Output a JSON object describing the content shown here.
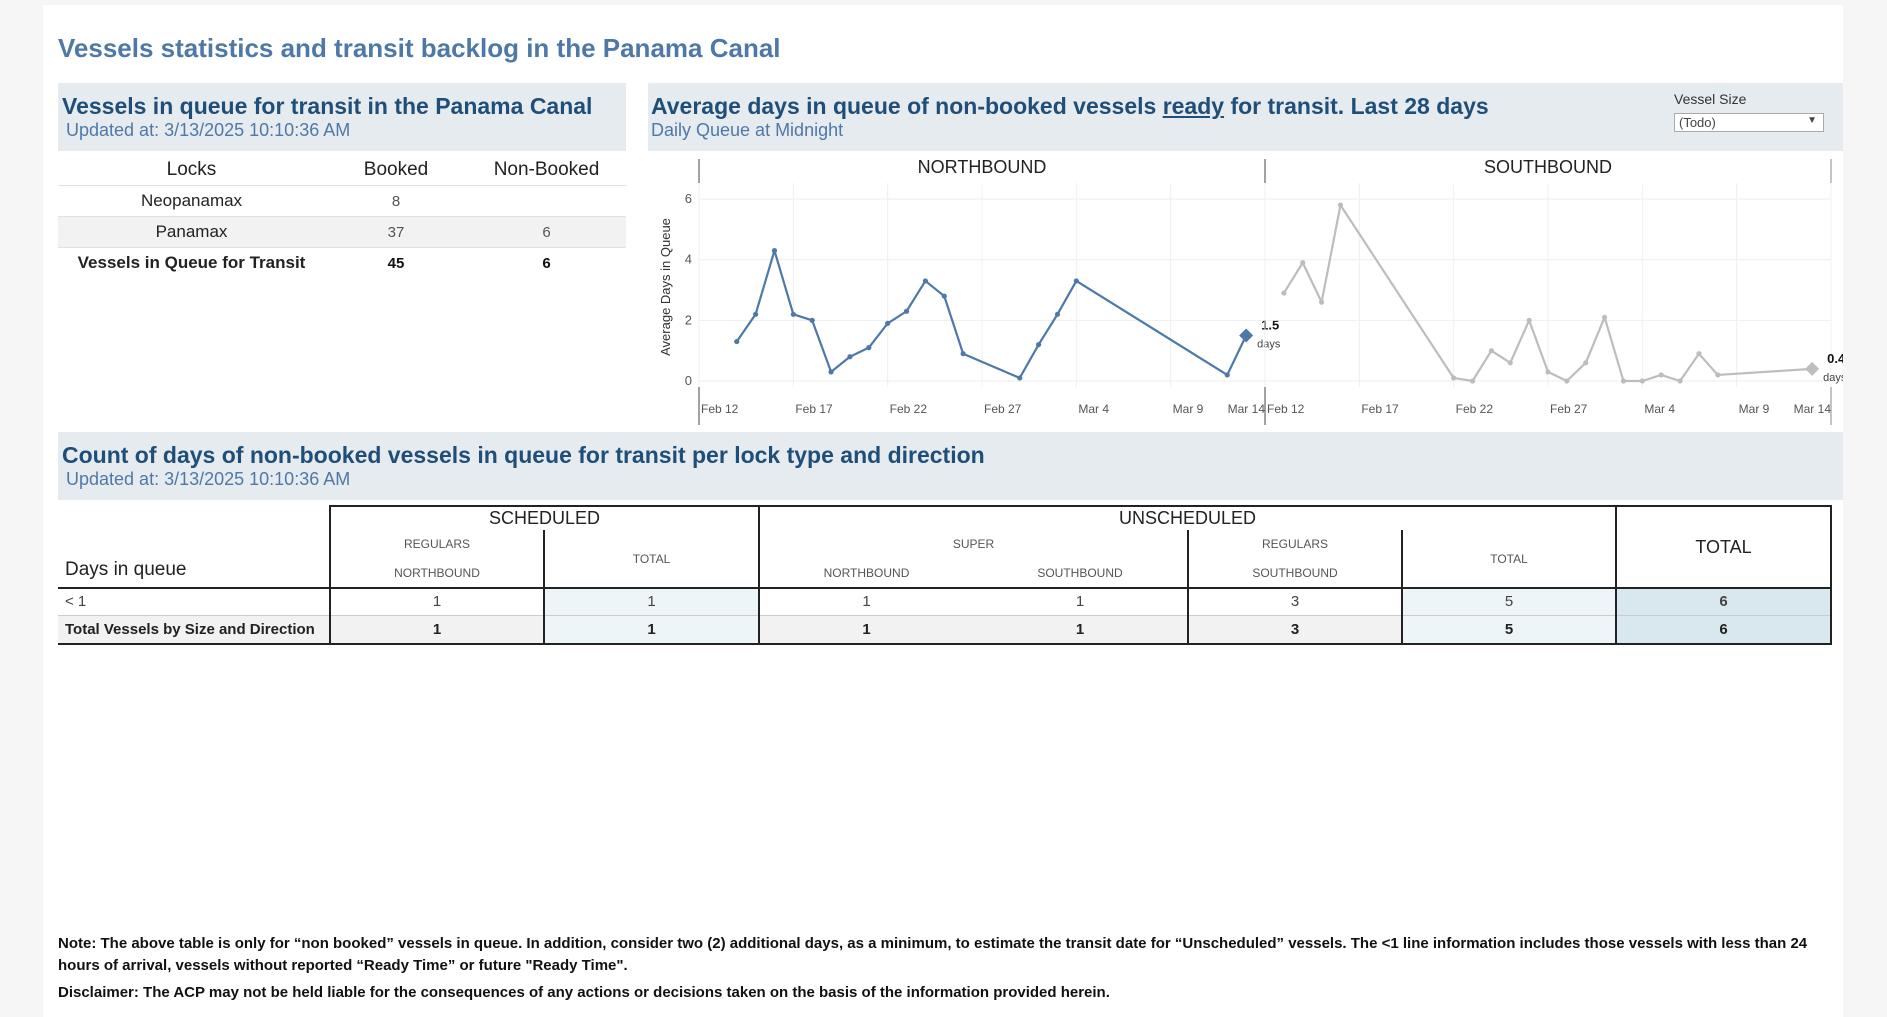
{
  "page": {
    "title": "Vessels statistics and transit backlog in the Panama Canal"
  },
  "queue_panel": {
    "title": "Vessels in queue for transit in the Panama Canal",
    "updated": "Updated at:  3/13/2025 10:10:36 AM",
    "headers": {
      "locks": "Locks",
      "booked": "Booked",
      "nonbooked": "Non-Booked"
    },
    "rows": [
      {
        "name": "Neopanamax",
        "booked": "8",
        "nonbooked": ""
      },
      {
        "name": "Panamax",
        "booked": "37",
        "nonbooked": "6"
      }
    ],
    "total": {
      "name": "Vessels in Queue for Transit",
      "booked": "45",
      "nonbooked": "6"
    }
  },
  "avg_panel": {
    "title_before": "Average days in queue of non-booked vessels ",
    "title_underlined": "ready",
    "title_after": " for transit. Last 28 days",
    "subtitle": "Daily Queue at Midnight",
    "filter": {
      "label": "Vessel Size",
      "value": "(Todo)"
    },
    "ylabel": "Average Days in Queue",
    "days_label": "days"
  },
  "chart_data": [
    {
      "type": "line",
      "title": "NORTHBOUND",
      "ylabel": "Average Days in Queue",
      "yticks": [
        "0",
        "2",
        "4",
        "6"
      ],
      "ylim": [
        0,
        6.2
      ],
      "xticks": [
        "Feb 12",
        "Feb 17",
        "Feb 22",
        "Feb 27",
        "Mar 4",
        "Mar 9",
        "Mar 14"
      ],
      "xlim_dates": [
        "2025-02-12",
        "2025-03-14"
      ],
      "color": "#4e79a7",
      "points": [
        [
          "2025-02-14",
          1.3
        ],
        [
          "2025-02-15",
          2.2
        ],
        [
          "2025-02-16",
          4.3
        ],
        [
          "2025-02-17",
          2.2
        ],
        [
          "2025-02-18",
          2.0
        ],
        [
          "2025-02-19",
          0.3
        ],
        [
          "2025-02-20",
          0.8
        ],
        [
          "2025-02-21",
          1.1
        ],
        [
          "2025-02-22",
          1.9
        ],
        [
          "2025-02-23",
          2.3
        ],
        [
          "2025-02-24",
          3.3
        ],
        [
          "2025-02-25",
          2.8
        ],
        [
          "2025-02-26",
          0.9
        ],
        [
          "2025-03-01",
          0.1
        ],
        [
          "2025-03-02",
          1.2
        ],
        [
          "2025-03-03",
          2.2
        ],
        [
          "2025-03-04",
          3.3
        ],
        [
          "2025-03-12",
          0.2
        ],
        [
          "2025-03-13",
          1.5
        ]
      ],
      "last_label": "1.5"
    },
    {
      "type": "line",
      "title": "SOUTHBOUND",
      "ylim": [
        0,
        6.2
      ],
      "xticks": [
        "Feb 12",
        "Feb 17",
        "Feb 22",
        "Feb 27",
        "Mar 4",
        "Mar 9",
        "Mar 14"
      ],
      "xlim_dates": [
        "2025-02-12",
        "2025-03-14"
      ],
      "color": "#bdbdbd",
      "points": [
        [
          "2025-02-13",
          2.9
        ],
        [
          "2025-02-14",
          3.9
        ],
        [
          "2025-02-15",
          2.6
        ],
        [
          "2025-02-16",
          5.8
        ],
        [
          "2025-02-22",
          0.1
        ],
        [
          "2025-02-23",
          0.0
        ],
        [
          "2025-02-24",
          1.0
        ],
        [
          "2025-02-25",
          0.6
        ],
        [
          "2025-02-26",
          2.0
        ],
        [
          "2025-02-27",
          0.3
        ],
        [
          "2025-02-28",
          0.0
        ],
        [
          "2025-03-01",
          0.6
        ],
        [
          "2025-03-02",
          2.1
        ],
        [
          "2025-03-03",
          0.0
        ],
        [
          "2025-03-04",
          0.0
        ],
        [
          "2025-03-05",
          0.2
        ],
        [
          "2025-03-06",
          0.0
        ],
        [
          "2025-03-07",
          0.9
        ],
        [
          "2025-03-08",
          0.2
        ],
        [
          "2025-03-13",
          0.4
        ]
      ],
      "last_label": "0.4"
    }
  ],
  "days_panel": {
    "title": "Count of days of non-booked vessels in queue for transit per lock type and direction",
    "updated": "Updated at:  3/13/2025 10:10:36 AM",
    "headers": {
      "scheduled": "SCHEDULED",
      "unscheduled": "UNSCHEDULED",
      "regulars": "REGULARS",
      "super": "SUPER",
      "northbound": "NORTHBOUND",
      "southbound": "SOUTHBOUND",
      "total_small": "TOTAL",
      "total": "TOTAL",
      "days_in_queue": "Days in queue"
    },
    "rows": [
      {
        "label": "< 1",
        "values": [
          "1",
          "1",
          "1",
          "1",
          "3",
          "5",
          "6"
        ]
      },
      {
        "label": "Total Vessels by Size and Direction",
        "values": [
          "1",
          "1",
          "1",
          "1",
          "3",
          "5",
          "6"
        ]
      }
    ]
  },
  "notes": {
    "note": "Note:  The above table is only for “non booked” vessels in queue. In addition, consider two (2) additional days, as a minimum, to estimate the transit date for “Unscheduled” vessels.  The <1 line information includes those vessels with less than 24 hours of arrival, vessels without reported “Ready Time” or future \"Ready Time\".",
    "disclaimer": "Disclaimer: The ACP may not be held liable for the consequences of any actions or decisions taken on the basis of the information provided herein."
  }
}
